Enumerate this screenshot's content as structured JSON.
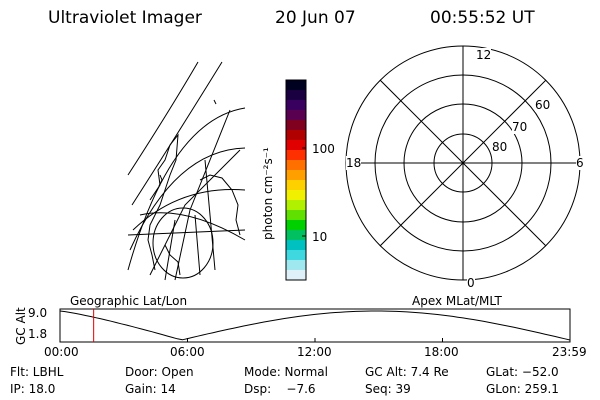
{
  "header": {
    "title": "Ultraviolet Imager",
    "date": "20 Jun 07",
    "time": "00:55:52 UT"
  },
  "colorbar": {
    "label": "photon cm⁻²s⁻¹",
    "ticks": [
      "100",
      "10"
    ],
    "colors": [
      "#000020",
      "#1a0040",
      "#3a0060",
      "#5a0050",
      "#800020",
      "#b00000",
      "#e00000",
      "#ff3000",
      "#ff7000",
      "#ffa000",
      "#ffd000",
      "#f0f000",
      "#b0f000",
      "#60e000",
      "#00d000",
      "#00c060",
      "#00c0c0",
      "#40d8e0",
      "#a0e8f0",
      "#e0f0f8"
    ]
  },
  "geo_panel": {
    "label": "Geographic Lat/Lon"
  },
  "polar_panel": {
    "label": "Apex MLat/MLT",
    "mlt_labels": {
      "top": "12",
      "bottom": "0",
      "left": "18",
      "right": "6"
    },
    "lat_labels": [
      "60",
      "70",
      "80"
    ]
  },
  "timeline": {
    "ylabel": "GC Alt",
    "ymax": "9.0",
    "ymin": "1.8",
    "xticks": [
      "00:00",
      "06:00",
      "12:00",
      "18:00",
      "23:59"
    ],
    "marker_fraction": 0.066,
    "marker_color": "#e00000"
  },
  "info": {
    "row1": {
      "flt": "Flt: LBHL",
      "door": "Door: Open",
      "mode": "Mode: Normal",
      "gcalt": "GC Alt: 7.4 Re",
      "glat": "GLat: −52.0"
    },
    "row2": {
      "ip": "IP: 18.0",
      "gain": "Gain: 14",
      "dsp": "Dsp:    −7.6",
      "seq": "Seq: 39",
      "glon": "GLon: 259.1"
    }
  }
}
